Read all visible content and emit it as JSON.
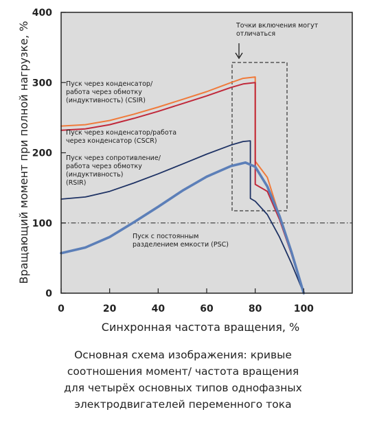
{
  "chart_data": {
    "type": "line",
    "xlabel": "Синхронная частота вращения, %",
    "ylabel": "Вращающий момент при полной нагрузке, %",
    "xlim": [
      0,
      120
    ],
    "ylim": [
      0,
      400
    ],
    "x_ticks": [
      "0",
      "20",
      "40",
      "60",
      "80",
      "100"
    ],
    "y_ticks": [
      "0",
      "100",
      "200",
      "300",
      "400"
    ],
    "grid": false,
    "reference_line": {
      "y": 100,
      "style": "dash-dot"
    },
    "background_color": "#dcdcdc",
    "series": [
      {
        "color": "#f07a3a",
        "x": [
          0,
          10,
          20,
          30,
          40,
          50,
          60,
          70,
          75,
          80,
          80.01,
          85,
          90,
          95,
          100
        ],
        "y": [
          238,
          240,
          246,
          255,
          265,
          276,
          287,
          300,
          306,
          308,
          188,
          165,
          110,
          55,
          0
        ]
      },
      {
        "color": "#c0283a",
        "x": [
          0,
          10,
          20,
          30,
          40,
          50,
          60,
          70,
          75,
          80,
          80.01,
          85,
          90,
          95,
          100
        ],
        "y": [
          232,
          234,
          240,
          249,
          259,
          270,
          281,
          293,
          298,
          300,
          155,
          145,
          105,
          55,
          0
        ]
      },
      {
        "color": "#1e3264",
        "x": [
          0,
          10,
          20,
          30,
          40,
          50,
          60,
          70,
          75,
          78,
          78.01,
          80,
          85,
          90,
          95,
          100
        ],
        "y": [
          134,
          137,
          145,
          157,
          170,
          184,
          198,
          211,
          216,
          217,
          135,
          131,
          112,
          80,
          42,
          0
        ]
      },
      {
        "color": "#5c7fb8",
        "x": [
          0,
          10,
          20,
          30,
          40,
          50,
          60,
          70,
          76,
          80,
          85,
          90,
          95,
          100
        ],
        "y": [
          57,
          65,
          80,
          101,
          123,
          146,
          166,
          181,
          186,
          180,
          152,
          110,
          58,
          0
        ]
      }
    ],
    "annotations": [
      {
        "lines": [
          "Пуск через конденсатор/",
          "работа через обмотку",
          "(индуктивность) (CSIR)"
        ]
      },
      {
        "lines": [
          "Пуск через конденсатор/работа",
          "через конденсатор (CSCR)"
        ]
      },
      {
        "lines": [
          "Пуск через сопротивление/",
          "работа через обмотку",
          "(индуктивность)",
          "(RSIR)"
        ]
      },
      {
        "lines": [
          "Пуск с постоянным",
          "разделением емкости (PSC)"
        ]
      },
      {
        "lines": [
          "Точки включения могут",
          "отличаться"
        ]
      }
    ]
  },
  "caption": {
    "lines": [
      "Основная схема изображения: кривые",
      "соотношения момент/ частота вращения",
      "для четырёх основных типов однофазных",
      "электродвигателей переменного тока"
    ]
  }
}
